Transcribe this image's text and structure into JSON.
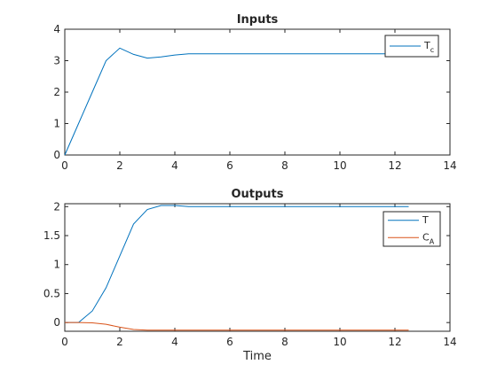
{
  "chart_data": [
    {
      "type": "line",
      "title": "Inputs",
      "xlabel": "",
      "ylabel": "",
      "xlim": [
        0,
        14
      ],
      "ylim": [
        0,
        4
      ],
      "xticks": [
        0,
        2,
        4,
        6,
        8,
        10,
        12,
        14
      ],
      "yticks": [
        0,
        1,
        2,
        3,
        4
      ],
      "grid": false,
      "legend_position": "top-right",
      "series": [
        {
          "name": "T",
          "name_subscript": "c",
          "color": "#0072BD",
          "x": [
            0,
            0.5,
            1.0,
            1.5,
            2.0,
            2.5,
            3.0,
            3.5,
            4.0,
            4.5,
            5.0,
            6.0,
            8.0,
            10.0,
            12.0,
            12.5
          ],
          "y": [
            0,
            1.0,
            2.0,
            3.0,
            3.4,
            3.2,
            3.08,
            3.12,
            3.18,
            3.22,
            3.22,
            3.22,
            3.22,
            3.22,
            3.22,
            3.22
          ]
        }
      ]
    },
    {
      "type": "line",
      "title": "Outputs",
      "xlabel": "Time",
      "ylabel": "",
      "xlim": [
        0,
        14
      ],
      "ylim": [
        -0.15,
        2.05
      ],
      "xticks": [
        0,
        2,
        4,
        6,
        8,
        10,
        12,
        14
      ],
      "yticks": [
        0,
        0.5,
        1,
        1.5,
        2
      ],
      "ytick_labels": [
        "0",
        "0.5",
        "1",
        "1.5",
        "2"
      ],
      "grid": false,
      "legend_position": "top-right",
      "series": [
        {
          "name": "T",
          "name_subscript": "",
          "color": "#0072BD",
          "x": [
            0,
            0.5,
            1.0,
            1.5,
            2.0,
            2.5,
            3.0,
            3.5,
            4.0,
            4.5,
            5.0,
            6.0,
            8.0,
            10.0,
            12.0,
            12.5
          ],
          "y": [
            0,
            0.0,
            0.2,
            0.6,
            1.15,
            1.7,
            1.95,
            2.02,
            2.02,
            2.0,
            2.0,
            2.0,
            2.0,
            2.0,
            2.0,
            2.0
          ]
        },
        {
          "name": "C",
          "name_subscript": "A",
          "color": "#D95319",
          "x": [
            0,
            0.5,
            1.0,
            1.5,
            2.0,
            2.5,
            3.0,
            3.5,
            4.0,
            4.5,
            5.0,
            6.0,
            8.0,
            10.0,
            12.0,
            12.5
          ],
          "y": [
            0,
            0.0,
            -0.005,
            -0.03,
            -0.08,
            -0.12,
            -0.13,
            -0.13,
            -0.13,
            -0.13,
            -0.13,
            -0.13,
            -0.13,
            -0.13,
            -0.13,
            -0.13
          ]
        }
      ]
    }
  ]
}
